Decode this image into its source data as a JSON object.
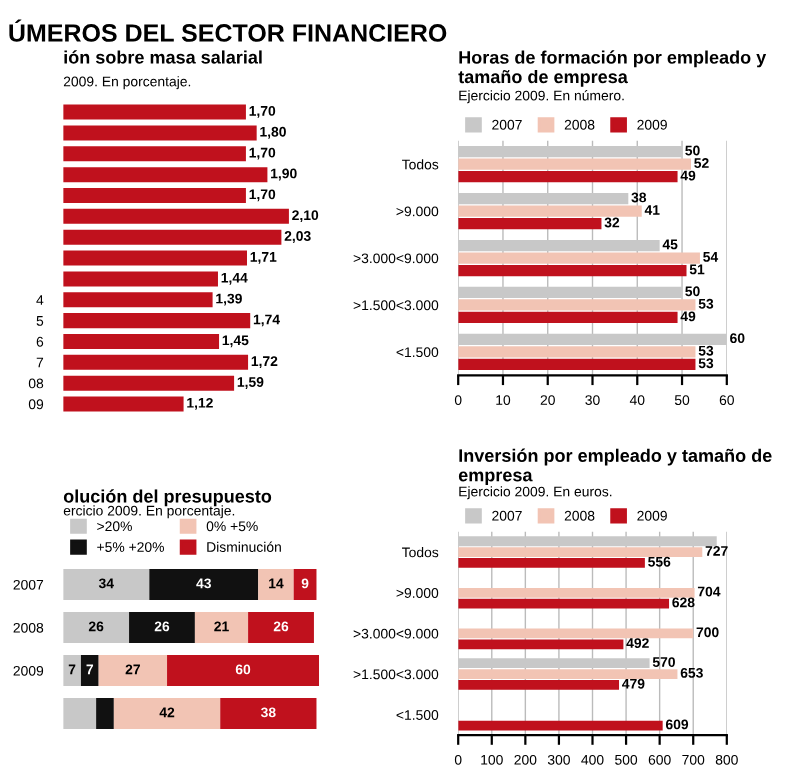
{
  "chart_data": [
    {
      "type": "bar",
      "orientation": "horizontal",
      "title": "ión sobre masa salarial",
      "subtitle": "2009. En porcentaje.",
      "annotations": [
        "ÚMEROS DEL SECTOR FINANCIERO"
      ],
      "categories": [
        null,
        null,
        null,
        null,
        null,
        null,
        null,
        null,
        null,
        "4",
        "5",
        "6",
        "7",
        "08",
        "09"
      ],
      "series": [
        {
          "color": "#c0111d",
          "values": [
            1.7,
            1.8,
            1.7,
            1.9,
            1.7,
            2.1,
            2.03,
            1.71,
            1.44,
            1.39,
            1.74,
            1.45,
            1.72,
            1.59,
            1.12
          ],
          "value_labels": [
            "1,70",
            "1,80",
            "1,70",
            "1,90",
            "1,70",
            "2,10",
            "2,03",
            "1,71",
            "1,44",
            "1,39",
            "1,74",
            "1,45",
            "1,72",
            "1,59",
            "1,12"
          ]
        }
      ],
      "tick_labels": "y",
      "grid": false,
      "legend": false
    },
    {
      "type": "bar",
      "orientation": "horizontal",
      "title": "Horas de formación por empleado y tamaño de empresa",
      "subtitle": "Ejercicio 2009. En número.",
      "categories": [
        "Todos",
        ">9.000",
        ">3.000<9.000",
        ">1.500<3.000",
        "<1.500"
      ],
      "series": [
        {
          "name": "2007",
          "color": "#c8c8c8",
          "values": [
            50,
            38,
            45,
            50,
            60
          ]
        },
        {
          "name": "2008",
          "color": "#f2c4b4",
          "values": [
            52,
            41,
            54,
            53,
            53
          ]
        },
        {
          "name": "2009",
          "color": "#c0111d",
          "values": [
            49,
            32,
            51,
            49,
            53
          ]
        }
      ],
      "xlim": [
        0,
        60
      ],
      "xticks": [
        0,
        10,
        20,
        30,
        40,
        50,
        60
      ],
      "grid": "x",
      "legend": "top",
      "data_labels": true
    },
    {
      "type": "bar",
      "orientation": "horizontal",
      "title": "Inversión por empleado y tamaño de empresa",
      "subtitle": "Ejercicio 2009. En euros.",
      "categories": [
        "Todos",
        ">9.000",
        ">3.000<9.000",
        ">1.500<3.000",
        "<1.500"
      ],
      "series": [
        {
          "name": "2007",
          "color": "#c8c8c8",
          "values": [
            770,
            null,
            null,
            570,
            null
          ],
          "value_labels": [
            null,
            null,
            null,
            "570",
            null
          ]
        },
        {
          "name": "2008",
          "color": "#f2c4b4",
          "values": [
            727,
            704,
            700,
            653,
            null
          ],
          "value_labels": [
            "727",
            "704",
            "700",
            "653",
            null
          ]
        },
        {
          "name": "2009",
          "color": "#c0111d",
          "values": [
            556,
            628,
            492,
            479,
            609
          ],
          "value_labels": [
            "556",
            "628",
            "492",
            "479",
            "609"
          ]
        }
      ],
      "xlim": [
        0,
        800
      ],
      "xticks": [
        0,
        100,
        200,
        300,
        400,
        500,
        600,
        700,
        800
      ],
      "grid": "x",
      "legend": "top"
    },
    {
      "type": "bar",
      "orientation": "horizontal",
      "stacked": true,
      "title": "olución del presupuesto",
      "subtitle": "ercicio 2009. En porcentaje.",
      "categories": [
        "2007",
        "2008",
        "2009",
        null
      ],
      "series": [
        {
          "name": ">20%",
          "color": "#c8c8c8",
          "values": [
            34,
            26,
            7,
            13
          ],
          "value_labels": [
            "34",
            "26",
            "7",
            null
          ]
        },
        {
          "name": "+5% +20%",
          "color": "#111111",
          "values": [
            43,
            26,
            7,
            7
          ],
          "value_labels": [
            "43",
            "26",
            "7",
            null
          ]
        },
        {
          "name": "0% +5%",
          "color": "#f2c4b4",
          "values": [
            14,
            21,
            27,
            42
          ],
          "value_labels": [
            "14",
            "21",
            "27",
            "42"
          ]
        },
        {
          "name": "Disminución",
          "color": "#c0111d",
          "values": [
            9,
            26,
            60,
            38
          ],
          "value_labels": [
            "9",
            "26",
            "60",
            "38"
          ]
        }
      ],
      "tick_labels": "y",
      "grid": false,
      "legend": "top"
    }
  ]
}
